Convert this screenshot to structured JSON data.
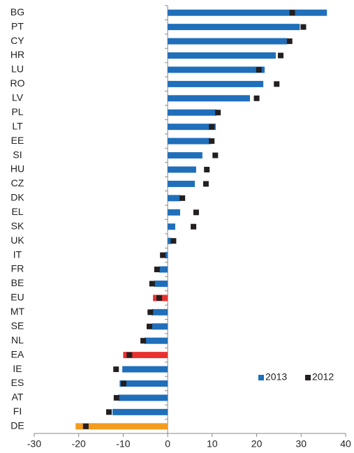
{
  "chart_data": {
    "type": "bar",
    "orientation": "horizontal",
    "categories": [
      "BG",
      "PT",
      "CY",
      "HR",
      "LU",
      "RO",
      "LV",
      "PL",
      "LT",
      "EE",
      "SI",
      "HU",
      "CZ",
      "DK",
      "EL",
      "SK",
      "UK",
      "IT",
      "FR",
      "BE",
      "EU",
      "MT",
      "SE",
      "NL",
      "EA",
      "IE",
      "ES",
      "AT",
      "FI",
      "DE"
    ],
    "series": [
      {
        "name": "2013",
        "style": "bar",
        "color": "#1f6fba",
        "point_colors": [
          "#1f6fba",
          "#1f6fba",
          "#1f6fba",
          "#1f6fba",
          "#1f6fba",
          "#1f6fba",
          "#1f6fba",
          "#1f6fba",
          "#1f6fba",
          "#1f6fba",
          "#1f6fba",
          "#1f6fba",
          "#1f6fba",
          "#1f6fba",
          "#1f6fba",
          "#1f6fba",
          "#1f6fba",
          "#1f6fba",
          "#1f6fba",
          "#1f6fba",
          "#e8312f",
          "#1f6fba",
          "#1f6fba",
          "#1f6fba",
          "#e8312f",
          "#1f6fba",
          "#1f6fba",
          "#1f6fba",
          "#1f6fba",
          "#f39c1f"
        ],
        "values": [
          35.8,
          29.7,
          26.8,
          24.3,
          21.8,
          21.5,
          18.5,
          11,
          10.8,
          9.6,
          7.8,
          6.4,
          6.1,
          2.8,
          2.8,
          1.7,
          0.8,
          -0.6,
          -1.9,
          -3,
          -3.3,
          -3.6,
          -3.5,
          -5.2,
          -10,
          -10.2,
          -10.8,
          -11.1,
          -12.4,
          -20.7
        ]
      },
      {
        "name": "2012",
        "style": "marker",
        "color": "#231f20",
        "values": [
          28,
          30.5,
          27.4,
          25.4,
          20.5,
          24.5,
          20,
          11.3,
          9.9,
          9.9,
          10.7,
          8.8,
          8.6,
          3.3,
          6.4,
          5.8,
          1.3,
          -1.1,
          -2.4,
          -3.5,
          -1.9,
          -3.9,
          -4.1,
          -5.5,
          -8.6,
          -11.6,
          -9.9,
          -11.5,
          -13.2,
          -18.4
        ]
      }
    ],
    "xlim": [
      -30,
      40
    ],
    "xticks": [
      -30,
      -20,
      -10,
      0,
      10,
      20,
      30,
      40
    ],
    "legend": "lower right"
  }
}
